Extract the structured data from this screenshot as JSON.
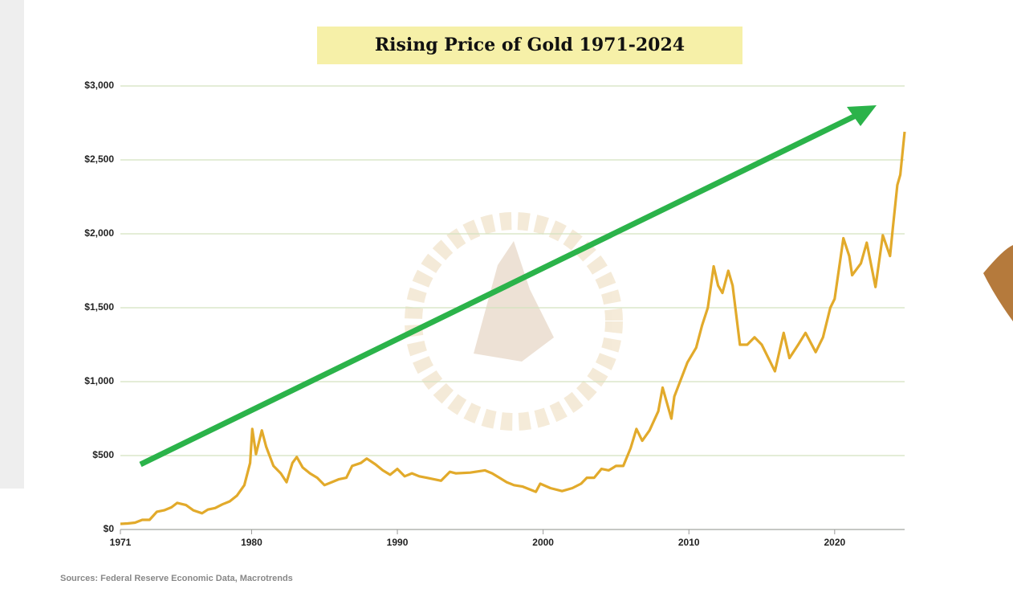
{
  "chart_data": {
    "type": "line",
    "title": "Rising Price of Gold 1971-2024",
    "source": "Sources: Federal Reserve Economic Data, Macrotrends",
    "color": "#e2aa2b",
    "grid": true,
    "xlim": [
      1971,
      2024.8
    ],
    "xticks": [
      1971,
      1980,
      1990,
      2000,
      2010,
      2020
    ],
    "ylim": [
      0,
      3000
    ],
    "yticks": [
      {
        "value": 0,
        "label": "$0"
      },
      {
        "value": 500,
        "label": "$500"
      },
      {
        "value": 1000,
        "label": "$1,000"
      },
      {
        "value": 1500,
        "label": "$1,500"
      },
      {
        "value": 2000,
        "label": "$2,000"
      },
      {
        "value": 2500,
        "label": "$2,500"
      },
      {
        "value": 3000,
        "label": "$3,000"
      }
    ],
    "x": [
      1971.0,
      1971.5,
      1972.0,
      1972.5,
      1973.0,
      1973.5,
      1974.0,
      1974.5,
      1974.9,
      1975.5,
      1976.0,
      1976.6,
      1977.0,
      1977.5,
      1978.0,
      1978.5,
      1979.0,
      1979.5,
      1979.9,
      1980.05,
      1980.3,
      1980.7,
      1981.0,
      1981.5,
      1982.0,
      1982.4,
      1982.8,
      1983.1,
      1983.5,
      1984.0,
      1984.5,
      1985.0,
      1985.5,
      1986.0,
      1986.5,
      1986.9,
      1987.5,
      1987.9,
      1988.5,
      1989.0,
      1989.5,
      1990.0,
      1990.5,
      1991.0,
      1991.5,
      1992.0,
      1992.5,
      1993.0,
      1993.6,
      1994.0,
      1995.0,
      1996.0,
      1996.5,
      1997.0,
      1997.5,
      1998.0,
      1998.6,
      1999.5,
      1999.8,
      2000.5,
      2001.3,
      2002.0,
      2002.6,
      2003.0,
      2003.5,
      2004.0,
      2004.5,
      2005.0,
      2005.5,
      2006.0,
      2006.4,
      2006.8,
      2007.3,
      2007.9,
      2008.2,
      2008.8,
      2009.0,
      2009.9,
      2010.5,
      2010.9,
      2011.3,
      2011.7,
      2012.0,
      2012.3,
      2012.7,
      2013.0,
      2013.5,
      2014.0,
      2014.5,
      2015.0,
      2015.9,
      2016.5,
      2016.9,
      2017.5,
      2018.0,
      2018.7,
      2019.2,
      2019.7,
      2020.0,
      2020.6,
      2021.0,
      2021.2,
      2021.8,
      2022.2,
      2022.8,
      2023.3,
      2023.8,
      2024.0,
      2024.3,
      2024.5,
      2024.8
    ],
    "values": [
      38,
      41,
      46,
      65,
      65,
      120,
      130,
      150,
      180,
      165,
      130,
      110,
      135,
      145,
      170,
      190,
      230,
      300,
      450,
      680,
      510,
      670,
      560,
      430,
      380,
      320,
      450,
      490,
      420,
      380,
      350,
      300,
      320,
      340,
      350,
      430,
      450,
      480,
      440,
      400,
      370,
      410,
      360,
      380,
      360,
      350,
      340,
      330,
      390,
      380,
      385,
      400,
      380,
      350,
      320,
      300,
      290,
      255,
      310,
      280,
      260,
      280,
      310,
      350,
      350,
      410,
      400,
      430,
      430,
      550,
      680,
      600,
      670,
      800,
      960,
      750,
      900,
      1130,
      1230,
      1380,
      1500,
      1780,
      1650,
      1600,
      1750,
      1650,
      1250,
      1250,
      1300,
      1250,
      1070,
      1330,
      1160,
      1250,
      1330,
      1200,
      1300,
      1500,
      1560,
      1970,
      1850,
      1720,
      1800,
      1940,
      1640,
      1990,
      1850,
      2050,
      2330,
      2400,
      2690
    ]
  }
}
